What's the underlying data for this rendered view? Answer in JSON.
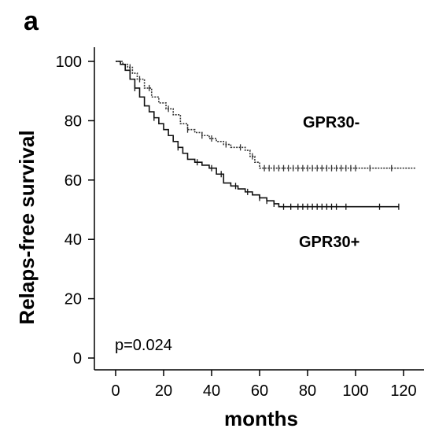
{
  "panel_label": "a",
  "chart_data": {
    "type": "line",
    "subtype": "kaplan-meier",
    "title": "",
    "xlabel": "months",
    "ylabel": "Relaps-free survival",
    "xlim": [
      0,
      125
    ],
    "ylim": [
      0,
      100
    ],
    "xticks": [
      0,
      20,
      40,
      60,
      80,
      100,
      120
    ],
    "yticks": [
      0,
      20,
      40,
      60,
      80,
      100
    ],
    "grid": false,
    "annotation": "p=0.024",
    "series": [
      {
        "name": "GPR30-",
        "style": "dotted",
        "color": "#333333",
        "x": [
          0,
          3,
          5,
          7,
          9,
          12,
          15,
          18,
          21,
          24,
          27,
          30,
          33,
          36,
          39,
          42,
          45,
          48,
          51,
          54,
          56,
          58,
          60,
          62,
          65,
          70,
          80,
          90,
          100,
          110,
          120,
          125
        ],
        "y": [
          100,
          99,
          98,
          96,
          94,
          91,
          88,
          86,
          84,
          82,
          79,
          77,
          76,
          75,
          74,
          73,
          72,
          71,
          71,
          70,
          68,
          66,
          64,
          64,
          64,
          64,
          64,
          64,
          64,
          64,
          64,
          64
        ],
        "censor_x": [
          6,
          10,
          14,
          22,
          30,
          36,
          40,
          46,
          52,
          57,
          62,
          64,
          66,
          68,
          70,
          72,
          74,
          76,
          78,
          80,
          82,
          84,
          86,
          88,
          90,
          92,
          94,
          96,
          98,
          100,
          106,
          115
        ]
      },
      {
        "name": "GPR30+",
        "style": "solid",
        "color": "#111111",
        "x": [
          0,
          2,
          4,
          6,
          8,
          10,
          12,
          14,
          16,
          18,
          20,
          22,
          24,
          26,
          28,
          30,
          33,
          36,
          39,
          42,
          45,
          48,
          51,
          54,
          57,
          60,
          63,
          66,
          68,
          75,
          85,
          95,
          105,
          118
        ],
        "y": [
          100,
          99,
          97,
          94,
          91,
          88,
          85,
          83,
          81,
          79,
          77,
          75,
          73,
          71,
          69,
          67,
          66,
          65,
          64,
          62,
          59,
          58,
          57,
          56,
          55,
          54,
          53,
          52,
          51,
          51,
          51,
          51,
          51,
          51
        ],
        "censor_x": [
          8,
          16,
          26,
          34,
          40,
          44,
          50,
          55,
          60,
          63,
          66,
          70,
          73,
          76,
          78,
          80,
          82,
          84,
          86,
          88,
          90,
          92,
          96,
          110,
          118
        ]
      }
    ]
  }
}
